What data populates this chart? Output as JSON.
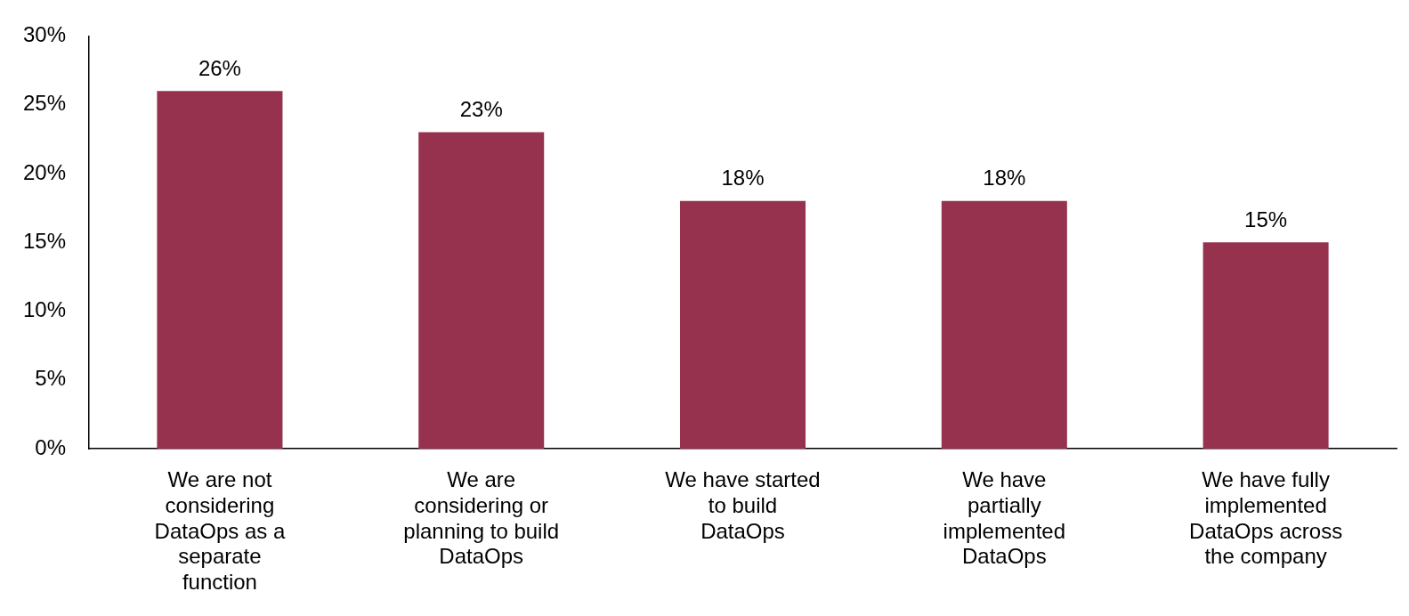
{
  "chart_data": {
    "type": "bar",
    "categories": [
      "We are not considering DataOps as a separate function",
      "We are considering or planning to build DataOps",
      "We have started to build DataOps",
      "We have partially implemented DataOps",
      "We have fully implemented DataOps across the company"
    ],
    "values": [
      26,
      23,
      18,
      18,
      15
    ],
    "value_labels": [
      "26%",
      "23%",
      "18%",
      "18%",
      "15%"
    ],
    "color": "#96314e",
    "ylim": [
      0,
      30
    ],
    "yticks": [
      {
        "value": 0,
        "label": "0%"
      },
      {
        "value": 5,
        "label": "5%"
      },
      {
        "value": 10,
        "label": "10%"
      },
      {
        "value": 15,
        "label": "15%"
      },
      {
        "value": 20,
        "label": "20%"
      },
      {
        "value": 25,
        "label": "25%"
      },
      {
        "value": 30,
        "label": "30%"
      }
    ],
    "grid": false,
    "legend": false
  }
}
